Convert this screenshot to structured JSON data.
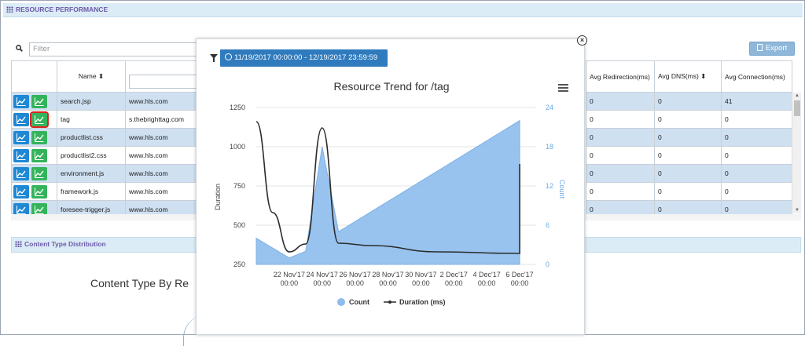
{
  "panel_title": "RESOURCE PERFORMANCE",
  "filter": {
    "placeholder": "Filter"
  },
  "export_label": "Export",
  "table": {
    "headers": {
      "name": "Name ⬍"
    },
    "right_headers": [
      "Avg Redirection(ms)",
      "Avg DNS(ms) ⬍",
      "Avg Connection(ms)"
    ],
    "rows": [
      {
        "name": "search.jsp",
        "host": "www.hls.com",
        "redir": "0",
        "dns": "0",
        "conn": "41"
      },
      {
        "name": "tag",
        "host": "s.thebrighttag.com",
        "redir": "0",
        "dns": "0",
        "conn": "0"
      },
      {
        "name": "productlist.css",
        "host": "www.hls.com",
        "redir": "0",
        "dns": "0",
        "conn": "0"
      },
      {
        "name": "productlist2.css",
        "host": "www.hls.com",
        "redir": "0",
        "dns": "0",
        "conn": "0"
      },
      {
        "name": "environment.js",
        "host": "www.hls.com",
        "redir": "0",
        "dns": "0",
        "conn": "0"
      },
      {
        "name": "framework.js",
        "host": "www.hls.com",
        "redir": "0",
        "dns": "0",
        "conn": "0"
      },
      {
        "name": "foresee-trigger.js",
        "host": "www.hls.com",
        "redir": "0",
        "dns": "0",
        "conn": "0"
      }
    ]
  },
  "content_panel_title": "Content Type Distribution",
  "content_chart_title": "Content Type By Re",
  "modal": {
    "date_range": "11/19/2017 00:00:00 - 12/19/2017 23:59:59",
    "close": "×"
  },
  "chart_data": {
    "type": "area",
    "title": "Resource Trend for /tag",
    "y_left_label": "Duration",
    "y_right_label": "Count",
    "y_left_ticks": [
      "1250",
      "1000",
      "750",
      "500",
      "250"
    ],
    "y_right_ticks": [
      "24",
      "18",
      "12",
      "6",
      "0"
    ],
    "ylim_left": [
      250,
      1250
    ],
    "ylim_right": [
      0,
      24
    ],
    "x_ticks": [
      {
        "date": "22 Nov'17",
        "time": "00:00"
      },
      {
        "date": "24 Nov'17",
        "time": "00:00"
      },
      {
        "date": "26 Nov'17",
        "time": "00:00"
      },
      {
        "date": "28 Nov'17",
        "time": "00:00"
      },
      {
        "date": "30 Nov'17",
        "time": "00:00"
      },
      {
        "date": "2 Dec'17",
        "time": "00:00"
      },
      {
        "date": "4 Dec'17",
        "time": "00:00"
      },
      {
        "date": "6 Dec'17",
        "time": "00:00"
      }
    ],
    "xlim": [
      "2017-11-20",
      "2017-12-07"
    ],
    "series": [
      {
        "name": "Count",
        "axis": "right",
        "color": "#8dbcec",
        "points": [
          [
            "2017-11-20",
            4
          ],
          [
            "2017-11-22",
            1
          ],
          [
            "2017-11-23",
            2
          ],
          [
            "2017-11-24",
            18
          ],
          [
            "2017-11-25",
            5
          ],
          [
            "2017-12-06",
            22
          ]
        ]
      },
      {
        "name": "Duration (ms)",
        "axis": "left",
        "color": "#2b2b2b",
        "points": [
          [
            "2017-11-20",
            1160
          ],
          [
            "2017-11-21",
            580
          ],
          [
            "2017-11-22",
            330
          ],
          [
            "2017-11-23",
            380
          ],
          [
            "2017-11-24",
            1120
          ],
          [
            "2017-11-25",
            385
          ],
          [
            "2017-11-27",
            370
          ],
          [
            "2017-12-01",
            330
          ],
          [
            "2017-12-06",
            320
          ],
          [
            "2017-12-06",
            890
          ]
        ]
      }
    ],
    "legend": [
      "Count",
      "Duration (ms)"
    ],
    "legend_position": "bottom"
  }
}
